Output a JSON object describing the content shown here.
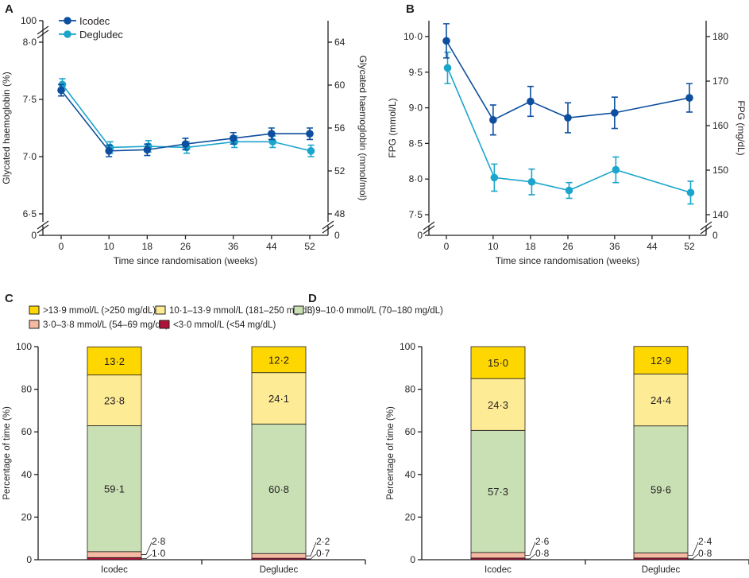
{
  "colors": {
    "icodec": "#0d4f9e",
    "degludec": "#1ba5cc",
    "axis": "#231f20"
  },
  "chart_data": [
    {
      "panel": "A",
      "type": "line",
      "xlabel": "Time since randomisation (weeks)",
      "ylabel": "Glycated haemoglobin (%)",
      "ylabel_right": "Glycated haemoglobin (mmol/mol)",
      "x": [
        0,
        10,
        18,
        26,
        36,
        44,
        52
      ],
      "x_ticks": [
        "0",
        "10",
        "18",
        "26",
        "36",
        "44",
        "52"
      ],
      "ylim": [
        6.5,
        8.0
      ],
      "y_ticks": [
        "6·5",
        "7·0",
        "7·5",
        "8·0"
      ],
      "y_ticks_extra": {
        "bottom": "0",
        "top": "100"
      },
      "ylim_right": [
        48,
        64
      ],
      "y_ticks_right": [
        "48",
        "52",
        "56",
        "60",
        "64"
      ],
      "y_ticks_right_extra": {
        "bottom": "0"
      },
      "legend": "top-left",
      "series": [
        {
          "name": "Icodec",
          "color": "#0d4f9e",
          "values": [
            7.58,
            7.05,
            7.06,
            7.11,
            7.16,
            7.2,
            7.2
          ],
          "err": [
            0.05,
            0.05,
            0.05,
            0.05,
            0.05,
            0.05,
            0.05
          ]
        },
        {
          "name": "Degludec",
          "color": "#1ba5cc",
          "values": [
            7.63,
            7.08,
            7.09,
            7.08,
            7.13,
            7.13,
            7.05
          ],
          "err": [
            0.05,
            0.05,
            0.05,
            0.05,
            0.05,
            0.05,
            0.05
          ]
        }
      ]
    },
    {
      "panel": "B",
      "type": "line",
      "xlabel": "Time since randomisation (weeks)",
      "ylabel": "FPG (mmol/L)",
      "ylabel_right": "FPG (mg/dL)",
      "x": [
        0,
        10,
        18,
        26,
        36,
        52
      ],
      "x_ticks": [
        "0",
        "10",
        "18",
        "26",
        "36",
        "44",
        "52"
      ],
      "x_tick_values": [
        0,
        10,
        18,
        26,
        36,
        44,
        52
      ],
      "ylim": [
        7.5,
        10.0
      ],
      "y_ticks": [
        "7·5",
        "8·0",
        "8·5",
        "9·0",
        "9·5",
        "10·0"
      ],
      "y_ticks_extra": {
        "bottom": "0"
      },
      "ylim_right": [
        140,
        180
      ],
      "y_ticks_right": [
        "140",
        "150",
        "160",
        "170",
        "180"
      ],
      "y_ticks_right_extra": {
        "bottom": "0"
      },
      "series": [
        {
          "name": "Icodec",
          "color": "#0d4f9e",
          "values": [
            9.94,
            8.83,
            9.09,
            8.86,
            8.93,
            9.14
          ],
          "err": [
            0.24,
            0.21,
            0.21,
            0.21,
            0.22,
            0.2
          ]
        },
        {
          "name": "Degludec",
          "color": "#1ba5cc",
          "values": [
            9.56,
            8.02,
            7.96,
            7.84,
            8.13,
            7.81
          ],
          "err": [
            0.22,
            0.19,
            0.18,
            0.11,
            0.18,
            0.16
          ]
        }
      ]
    },
    {
      "panel": "C",
      "type": "bar",
      "stacked": true,
      "ylabel": "Percentage of time (%)",
      "ylim": [
        0,
        100
      ],
      "y_ticks": [
        "0",
        "20",
        "40",
        "60",
        "80",
        "100"
      ],
      "categories": [
        "Icodec",
        "Degludec"
      ],
      "series": [
        {
          "name": "<3·0 mmol/L (<54 mg/dL)",
          "color": "#b0123a",
          "values": [
            1.0,
            0.7
          ],
          "labels": [
            "1·0",
            "0·7"
          ]
        },
        {
          "name": "3·0–3·8 mmol/L (54–69 mg/dL)",
          "color": "#f6b9a1",
          "values": [
            2.8,
            2.2
          ],
          "labels": [
            "2·8",
            "2·2"
          ]
        },
        {
          "name": "3·9–10·0 mmol/L (70–180 mg/dL)",
          "color": "#c9e0b5",
          "values": [
            59.1,
            60.8
          ],
          "labels": [
            "59·1",
            "60·8"
          ]
        },
        {
          "name": "10·1–13·9 mmol/L (181–250 mg/dL)",
          "color": "#feeb95",
          "values": [
            23.8,
            24.1
          ],
          "labels": [
            "23·8",
            "24·1"
          ]
        },
        {
          "name": ">13·9 mmol/L (>250 mg/dL)",
          "color": "#ffd700",
          "values": [
            13.2,
            12.2
          ],
          "labels": [
            "13·2",
            "12·2"
          ]
        }
      ]
    },
    {
      "panel": "D",
      "type": "bar",
      "stacked": true,
      "ylabel": "Percentage of time (%)",
      "ylim": [
        0,
        100
      ],
      "y_ticks": [
        "0",
        "20",
        "40",
        "60",
        "80",
        "100"
      ],
      "categories": [
        "Icodec",
        "Degludec"
      ],
      "series": [
        {
          "name": "<3·0 mmol/L (<54 mg/dL)",
          "color": "#b0123a",
          "values": [
            0.8,
            0.8
          ],
          "labels": [
            "0·8",
            "0·8"
          ]
        },
        {
          "name": "3·0–3·8 mmol/L (54–69 mg/dL)",
          "color": "#f6b9a1",
          "values": [
            2.6,
            2.4
          ],
          "labels": [
            "2·6",
            "2·4"
          ]
        },
        {
          "name": "3·9–10·0 mmol/L (70–180 mg/dL)",
          "color": "#c9e0b5",
          "values": [
            57.3,
            59.6
          ],
          "labels": [
            "57·3",
            "59·6"
          ]
        },
        {
          "name": "10·1–13·9 mmol/L (181–250 mg/dL)",
          "color": "#feeb95",
          "values": [
            24.3,
            24.4
          ],
          "labels": [
            "24·3",
            "24·4"
          ]
        },
        {
          "name": ">13·9 mmol/L (>250 mg/dL)",
          "color": "#ffd700",
          "values": [
            15.0,
            12.9
          ],
          "labels": [
            "15·0",
            "12·9"
          ]
        }
      ]
    }
  ],
  "bar_legend_order": [
    4,
    3,
    2,
    1,
    0
  ]
}
